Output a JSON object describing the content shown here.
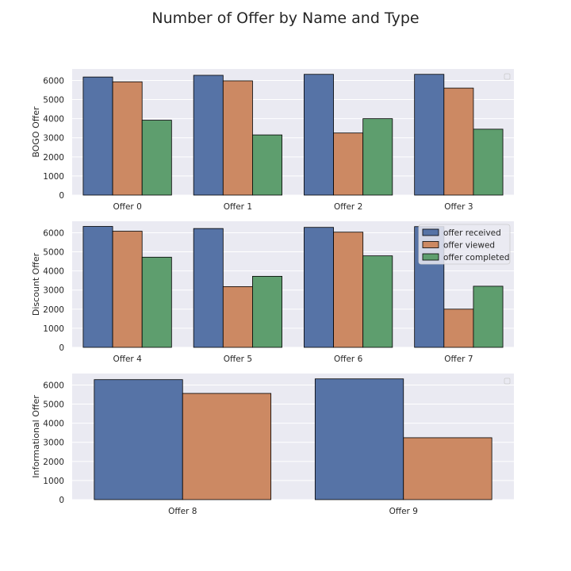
{
  "figure": {
    "title": "Number of Offer by Name and Type",
    "colors": {
      "background": "#ffffff",
      "axes_face": "#eaeaf2",
      "grid": "#ffffff",
      "edge": "#000000",
      "text": "#262626"
    }
  },
  "chart_data": [
    {
      "type": "bar",
      "title": "",
      "xlabel": "",
      "ylabel": "BOGO Offer",
      "ylim": [
        0,
        6600
      ],
      "yticks": [
        0,
        1000,
        2000,
        3000,
        4000,
        5000,
        6000
      ],
      "categories": [
        "Offer 0",
        "Offer 1",
        "Offer 2",
        "Offer 3"
      ],
      "series": [
        {
          "name": "offer received",
          "color": "#5673a6",
          "values": [
            6180,
            6270,
            6320,
            6320
          ]
        },
        {
          "name": "offer viewed",
          "color": "#cc8963",
          "values": [
            5930,
            5980,
            3250,
            5600
          ]
        },
        {
          "name": "offer completed",
          "color": "#5e9e6e",
          "values": [
            3920,
            3150,
            4000,
            3450
          ]
        }
      ],
      "grid": true,
      "legend": {
        "visible": false,
        "placement": "top-right",
        "empty_box": true
      }
    },
    {
      "type": "bar",
      "title": "",
      "xlabel": "",
      "ylabel": "Discount Offer",
      "ylim": [
        0,
        6600
      ],
      "yticks": [
        0,
        1000,
        2000,
        3000,
        4000,
        5000,
        6000
      ],
      "categories": [
        "Offer 4",
        "Offer 5",
        "Offer 6",
        "Offer 7"
      ],
      "series": [
        {
          "name": "offer received",
          "color": "#5673a6",
          "values": [
            6330,
            6220,
            6280,
            6320
          ]
        },
        {
          "name": "offer viewed",
          "color": "#cc8963",
          "values": [
            6080,
            3180,
            6030,
            2000
          ]
        },
        {
          "name": "offer completed",
          "color": "#5e9e6e",
          "values": [
            4720,
            3720,
            4790,
            3200
          ]
        }
      ],
      "grid": true,
      "legend": {
        "visible": true,
        "placement": "top-right",
        "empty_box": false,
        "entries": [
          "offer received",
          "offer viewed",
          "offer completed"
        ]
      }
    },
    {
      "type": "bar",
      "title": "",
      "xlabel": "",
      "ylabel": "Informational Offer",
      "ylim": [
        0,
        6600
      ],
      "yticks": [
        0,
        1000,
        2000,
        3000,
        4000,
        5000,
        6000
      ],
      "categories": [
        "Offer 8",
        "Offer 9"
      ],
      "series": [
        {
          "name": "offer received",
          "color": "#5673a6",
          "values": [
            6280,
            6320
          ]
        },
        {
          "name": "offer viewed",
          "color": "#cc8963",
          "values": [
            5560,
            3240
          ]
        }
      ],
      "grid": true,
      "legend": {
        "visible": false,
        "placement": "top-right",
        "empty_box": true
      }
    }
  ]
}
